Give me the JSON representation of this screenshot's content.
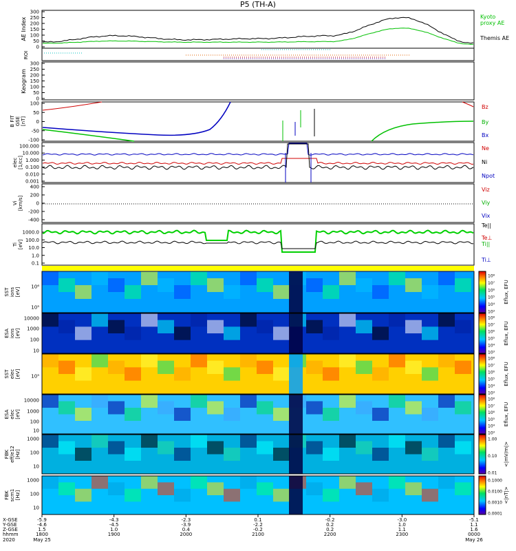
{
  "title": "P5 (TH-A)",
  "panels": {
    "ae": {
      "ylabel": "AE Index",
      "ticks": [
        "300",
        "250",
        "200",
        "150",
        "100",
        "50",
        "0"
      ],
      "legend": [
        {
          "text": "Kyoto",
          "color": "#00c000"
        },
        {
          "text": "proxy AE",
          "color": "#00c000"
        },
        {
          "text": "Themis AE",
          "color": "#000000"
        }
      ]
    },
    "roi": {
      "ylabel": "ROI"
    },
    "keogram": {
      "ylabel": "Keogram",
      "ticks": [
        "300",
        "250",
        "200",
        "150",
        "100",
        "50",
        "0"
      ]
    },
    "bfield": {
      "ylabel_lines": [
        "B FIT",
        "GSE",
        "[nT]"
      ],
      "ticks": [
        "100",
        "50",
        "0",
        "-50",
        "-100"
      ],
      "legend": [
        {
          "text": "Bz",
          "color": "#d00000"
        },
        {
          "text": "By",
          "color": "#00b000"
        },
        {
          "text": "Bx",
          "color": "#0000c0"
        }
      ]
    },
    "density": {
      "ylabel_lines": [
        "elec",
        "[1/cc]"
      ],
      "ticks": [
        "100.000",
        "10.000",
        "1.000",
        "0.100",
        "0.010",
        "0.001"
      ],
      "legend": [
        {
          "text": "Ne",
          "color": "#d00000"
        },
        {
          "text": "Ni",
          "color": "#000000"
        },
        {
          "text": "Npot",
          "color": "#0000c0"
        }
      ]
    },
    "velocity": {
      "ylabel_lines": [
        "Vi",
        "[km/s]"
      ],
      "ticks": [
        "400",
        "200",
        "0",
        "-200",
        "-400"
      ],
      "legend": [
        {
          "text": "Viz",
          "color": "#d00000"
        },
        {
          "text": "Viy",
          "color": "#00b000"
        },
        {
          "text": "Vix",
          "color": "#0000c0"
        }
      ]
    },
    "temperature": {
      "ylabel_lines": [
        "Ti",
        "[eV]"
      ],
      "ticks": [
        "1000.0",
        "100.0",
        "10.0",
        "1.0",
        "0.1"
      ],
      "legend": [
        {
          "text": "Te||",
          "color": "#000000"
        },
        {
          "text": "Te⊥",
          "color": "#d00000"
        },
        {
          "text": "Ti||",
          "color": "#00b000"
        },
        {
          "text": "Ti⊥",
          "color": "#0000c0"
        }
      ]
    },
    "spectrograms": [
      {
        "id": "sst-ion",
        "ylabel_lines": [
          "SST",
          "ions",
          "[eV]"
        ],
        "ticks": [
          "10⁶",
          "10⁵"
        ],
        "clabel": "Eflux, EFU"
      },
      {
        "id": "esa-ion",
        "ylabel_lines": [
          "ESA",
          "ions",
          "[eV]"
        ],
        "ticks": [
          "10000",
          "1000",
          "100",
          "10"
        ],
        "clabel": "Eflux, EFU"
      },
      {
        "id": "sst-elec",
        "ylabel_lines": [
          "SST",
          "elec",
          "[eV]"
        ],
        "ticks": [
          "10⁵"
        ],
        "clabel": "Eflux, EFU"
      },
      {
        "id": "esa-elec",
        "ylabel_lines": [
          "ESA",
          "elec",
          "[eV]"
        ],
        "ticks": [
          "10000",
          "1000",
          "100",
          "10"
        ],
        "clabel": "Eflux, EFU"
      },
      {
        "id": "fbk-efield",
        "ylabel_lines": [
          "FBK",
          "eff/e12",
          "[Hz]"
        ],
        "ticks": [
          "1000",
          "100",
          "10"
        ],
        "clabel": "<|mV/m|>",
        "cticks": [
          "1.00",
          "0.10",
          "0.01"
        ]
      },
      {
        "id": "fbk-bfield",
        "ylabel_lines": [
          "FBK",
          "scm1",
          "[Hz]"
        ],
        "ticks": [
          "1000",
          "100",
          "10"
        ],
        "clabel": "<|nT|>",
        "cticks": [
          "0.1000",
          "0.0100",
          "0.0010",
          "0.0001"
        ]
      }
    ],
    "colorbar_ticks": [
      "10⁸",
      "10⁷",
      "10⁶",
      "10⁵",
      "10⁴",
      "10³"
    ]
  },
  "xaxis": {
    "row_labels": [
      "X-GSE",
      "Y-GSE",
      "Z-GSE",
      "hhmm",
      "2020"
    ],
    "ticks": [
      {
        "x": "-5.9",
        "y": "-4.6",
        "z": "1.5",
        "t": "1800",
        "d": "May 25"
      },
      {
        "x": "-4.3",
        "y": "-4.5",
        "z": "1.0",
        "t": "1900",
        "d": ""
      },
      {
        "x": "-2.3",
        "y": "-3.9",
        "z": "0.4",
        "t": "2000",
        "d": ""
      },
      {
        "x": "0.1",
        "y": "-2.2",
        "z": "-0.2",
        "t": "2100",
        "d": ""
      },
      {
        "x": "-0.2",
        "y": "0.2",
        "z": "0.2",
        "t": "2200",
        "d": ""
      },
      {
        "x": "-3.0",
        "y": "1.0",
        "z": "1.1",
        "t": "2300",
        "d": ""
      },
      {
        "x": "-5.1",
        "y": "1.1",
        "z": "1.6",
        "t": "0000",
        "d": "May 26"
      }
    ]
  },
  "chart_data": {
    "type": "line",
    "title": "P5 (TH-A)",
    "x": [
      "1800",
      "1900",
      "2000",
      "2100",
      "2200",
      "2300",
      "0000"
    ],
    "series": [
      {
        "name": "Themis AE",
        "values": [
          40,
          95,
          60,
          70,
          95,
          250,
          30
        ]
      },
      {
        "name": "Kyoto proxy AE",
        "values": [
          30,
          50,
          40,
          40,
          45,
          160,
          20
        ]
      }
    ],
    "ylabel": "AE Index",
    "ylim": [
      0,
      300
    ],
    "grid": false,
    "legend": "right"
  }
}
